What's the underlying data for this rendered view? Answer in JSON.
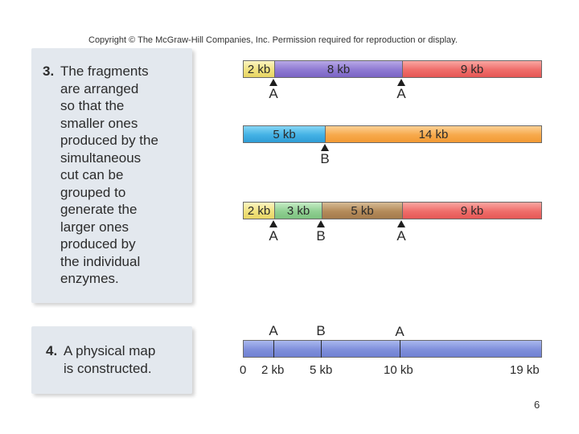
{
  "copyright": "Copyright © The McGraw-Hill Companies, Inc. Permission required for reproduction or display.",
  "step3": {
    "number": "3.",
    "first_line": "The fragments",
    "lines": [
      "are arranged",
      "so that the",
      "smaller ones",
      "produced by the",
      "simultaneous",
      "cut can be",
      "grouped to",
      "generate the",
      "larger ones",
      "produced by",
      "the individual",
      "enzymes."
    ]
  },
  "step4": {
    "number": "4.",
    "first_line": "A physical map",
    "lines": [
      "is constructed."
    ]
  },
  "digest_A": {
    "segments": [
      {
        "label": "2 kb",
        "color": "#f1e27e"
      },
      {
        "label": "8 kb",
        "color": "#8e79d2"
      },
      {
        "label": "9 kb",
        "color": "#ef6d6a"
      }
    ],
    "sites": [
      "A",
      "A"
    ]
  },
  "digest_B": {
    "segments": [
      {
        "label": "5 kb",
        "color": "#43b1e5"
      },
      {
        "label": "14 kb",
        "color": "#f7a94b"
      }
    ],
    "sites": [
      "B"
    ]
  },
  "digest_AB": {
    "segments": [
      {
        "label": "2 kb",
        "color": "#f1e27e"
      },
      {
        "label": "3 kb",
        "color": "#90cf92"
      },
      {
        "label": "5 kb",
        "color": "#b48b5a"
      },
      {
        "label": "9 kb",
        "color": "#ef6d6a"
      }
    ],
    "sites": [
      "A",
      "B",
      "A"
    ]
  },
  "physical_map": {
    "sites": [
      "A",
      "B",
      "A"
    ],
    "positions": [
      "0",
      "2 kb",
      "5 kb",
      "10 kb",
      "19 kb"
    ],
    "color": "#7f8fdb"
  },
  "page_number": "6"
}
